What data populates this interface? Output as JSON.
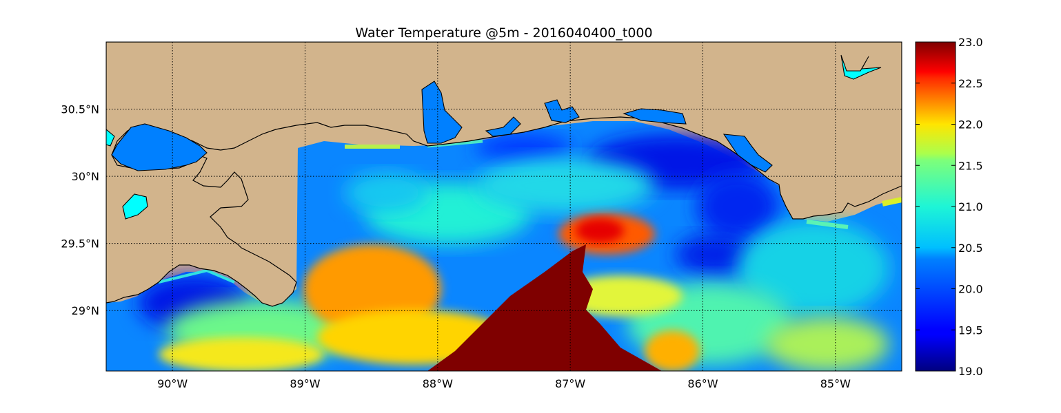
{
  "title": "Water Temperature @5m - 2016040400_t000",
  "map": {
    "lon_range": [
      -90.5,
      -84.5
    ],
    "lat_range": [
      28.55,
      31.0
    ],
    "lon_ticks": [
      {
        "value": -90,
        "label": "90°W"
      },
      {
        "value": -89,
        "label": "89°W"
      },
      {
        "value": -88,
        "label": "88°W"
      },
      {
        "value": -87,
        "label": "87°W"
      },
      {
        "value": -86,
        "label": "86°W"
      },
      {
        "value": -85,
        "label": "85°W"
      }
    ],
    "lat_ticks": [
      {
        "value": 30.5,
        "label": "30.5°N"
      },
      {
        "value": 30.0,
        "label": "30°N"
      },
      {
        "value": 29.5,
        "label": "29.5°N"
      },
      {
        "value": 29.0,
        "label": "29°N"
      }
    ],
    "grid": "dotted",
    "land_color": "#d2b48c",
    "inland_water_color": "#0080ff",
    "lake_color": "#00ffff",
    "coastline_color": "#000000"
  },
  "colorbar": {
    "min": 19.0,
    "max": 23.0,
    "colormap": "jet",
    "ticks": [
      "19.0",
      "19.5",
      "20.0",
      "20.5",
      "21.0",
      "21.5",
      "22.0",
      "22.5",
      "23.0"
    ]
  }
}
